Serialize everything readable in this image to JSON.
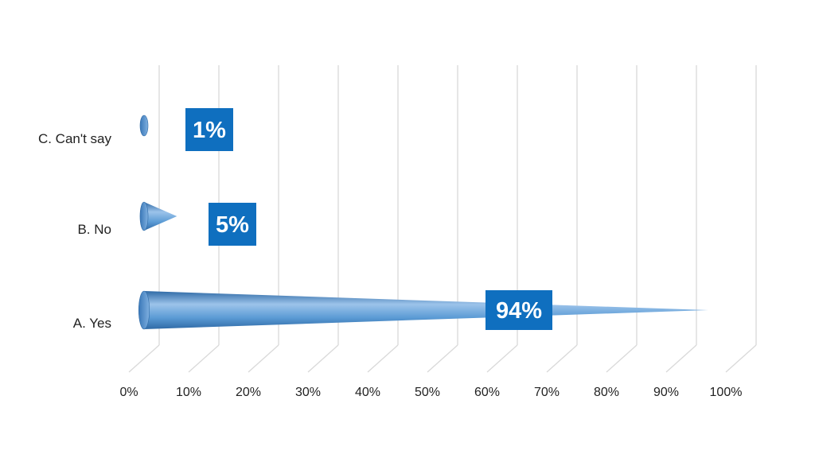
{
  "chart_data": {
    "type": "bar",
    "orientation": "horizontal",
    "style": "3d-cone",
    "categories": [
      "A. Yes",
      "B. No",
      "C. Can't say"
    ],
    "values": [
      94,
      5,
      1
    ],
    "data_labels": [
      "94%",
      "5%",
      "1%"
    ],
    "x_ticks": [
      "0%",
      "10%",
      "20%",
      "30%",
      "40%",
      "50%",
      "60%",
      "70%",
      "80%",
      "90%",
      "100%"
    ],
    "xlim": [
      0,
      100
    ],
    "grid": true,
    "legend": "none",
    "colors": {
      "cone_light": "#9cc3ea",
      "cone_mid": "#5b9bd5",
      "cone_dark": "#2f6aa6",
      "label_bg": "#0f6fbf",
      "grid": "#d9d9d9"
    }
  }
}
